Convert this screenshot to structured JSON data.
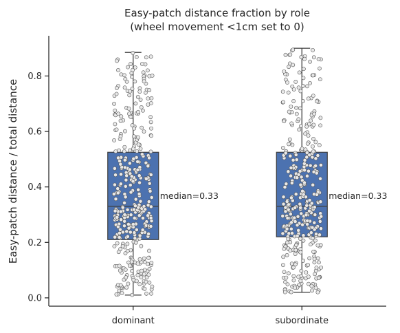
{
  "chart_data": {
    "type": "box",
    "title_lines": [
      "Easy-patch distance fraction by role",
      "(wheel movement <1cm set to 0)"
    ],
    "xlabel": "",
    "ylabel": "Easy-patch distance / total distance",
    "ylim": [
      -0.03,
      0.945
    ],
    "y_ticks": [
      0.0,
      0.2,
      0.4,
      0.6,
      0.8
    ],
    "y_tick_labels": [
      "0.0",
      "0.2",
      "0.4",
      "0.6",
      "0.8"
    ],
    "categories": [
      "dominant",
      "subordinate"
    ],
    "boxes": [
      {
        "category": "dominant",
        "q1": 0.21,
        "median": 0.33,
        "q3": 0.525,
        "whisker_low": 0.01,
        "whisker_high": 0.885,
        "annotation": "median=0.33"
      },
      {
        "category": "subordinate",
        "q1": 0.22,
        "median": 0.33,
        "q3": 0.525,
        "whisker_low": 0.02,
        "whisker_high": 0.9,
        "annotation": "median=0.33"
      }
    ],
    "box_color": "#4c72b0",
    "point_fill": "#e8e8e8",
    "point_edge": "#555555",
    "grid": false
  }
}
